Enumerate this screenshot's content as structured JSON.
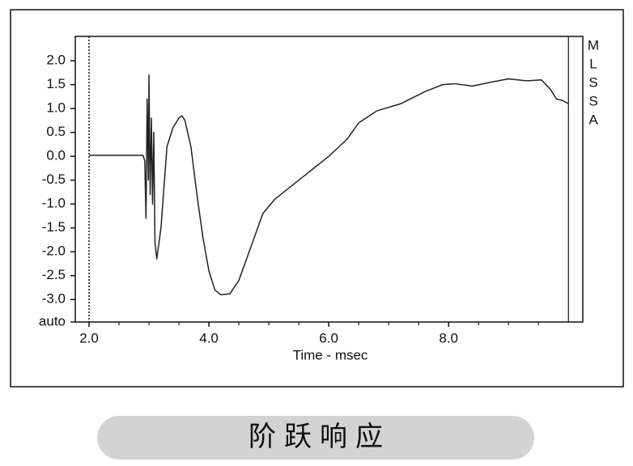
{
  "chart_data": {
    "type": "line",
    "xlabel": "Time - msec",
    "caption": "阶跃响应",
    "side_label": [
      "M",
      "L",
      "S",
      "S",
      "A"
    ],
    "xlim": [
      1.77,
      10.24
    ],
    "ylim": [
      -3.47,
      2.51
    ],
    "xticks": [
      {
        "value": 2,
        "label": "2.0"
      },
      {
        "value": 4,
        "label": "4.0"
      },
      {
        "value": 6,
        "label": "6.0"
      },
      {
        "value": 8,
        "label": "8.0"
      }
    ],
    "xticks_minor": [
      2.5,
      3,
      3.5,
      4.5,
      5,
      5.5,
      6.5,
      7,
      7.5,
      8.5,
      9,
      9.5
    ],
    "yticks": [
      {
        "value": 2,
        "label": "2.0"
      },
      1.5,
      {
        "value": 1,
        "label": "1.0"
      },
      0.5,
      {
        "value": 0,
        "label": "0.0"
      },
      -0.5,
      {
        "value": -1,
        "label": "-1.0"
      },
      -1.5,
      {
        "value": -2,
        "label": "-2.0"
      },
      -2.5,
      {
        "value": -3,
        "label": "-3.0"
      },
      {
        "value": -3.47,
        "label": "auto"
      }
    ],
    "vlines": [
      {
        "x": 2.0,
        "style": "dotted"
      },
      {
        "x": 10.0,
        "style": "solid"
      }
    ],
    "series": [
      {
        "color": "#222222",
        "x": [
          2.0,
          2.5,
          2.9,
          2.93,
          2.95,
          2.97,
          2.99,
          3.0,
          3.02,
          3.04,
          3.06,
          3.08,
          3.1,
          3.13,
          3.2,
          3.3,
          3.4,
          3.5,
          3.55,
          3.6,
          3.7,
          3.8,
          3.9,
          4.0,
          4.1,
          4.2,
          4.35,
          4.5,
          4.7,
          4.9,
          5.1,
          5.4,
          5.7,
          6.0,
          6.3,
          6.5,
          6.8,
          7.2,
          7.6,
          7.9,
          8.1,
          8.4,
          8.7,
          9.0,
          9.3,
          9.55,
          9.7,
          9.8,
          9.9,
          10.0
        ],
        "values": [
          0.02,
          0.02,
          0.02,
          -0.1,
          -1.3,
          1.2,
          -0.5,
          1.7,
          -0.8,
          0.8,
          -1.0,
          0.5,
          -1.8,
          -2.15,
          -1.5,
          0.2,
          0.6,
          0.8,
          0.85,
          0.75,
          0.2,
          -0.8,
          -1.7,
          -2.4,
          -2.8,
          -2.9,
          -2.88,
          -2.6,
          -1.9,
          -1.2,
          -0.9,
          -0.6,
          -0.3,
          0.0,
          0.35,
          0.7,
          0.95,
          1.1,
          1.35,
          1.5,
          1.52,
          1.47,
          1.55,
          1.62,
          1.58,
          1.6,
          1.4,
          1.2,
          1.17,
          1.1
        ]
      }
    ]
  }
}
